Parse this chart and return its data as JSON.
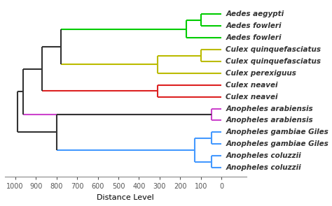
{
  "xlabel": "Distance Level",
  "taxa": [
    "Aedes aegypti",
    "Aedes fowleri",
    "Aedes fowleri",
    "Culex quinquefasciatus",
    "Culex quinquefasciatus",
    "Culex perexiguus",
    "Culex neavei",
    "Culex neavei",
    "Anopheles arabiensis",
    "Anopheles arabiensis",
    "Anopheles gambiae Giles",
    "Anopheles gambiae Giles",
    "Anopheles coluzzii",
    "Anopheles coluzzii"
  ],
  "background_color": "#ffffff",
  "tick_label_fontsize": 7,
  "label_fontsize": 7.5,
  "xlabel_fontsize": 8,
  "green_color": "#00cc00",
  "yellow_color": "#bbbb00",
  "red_color": "#dd2222",
  "magenta_color": "#cc44cc",
  "blue_color": "#4499ff",
  "black_color": "#333333",
  "lw": 1.5,
  "xticks": [
    1000,
    900,
    800,
    700,
    600,
    500,
    400,
    300,
    200,
    100,
    0
  ],
  "xtick_labels": [
    "1000",
    "900",
    "800",
    "700",
    "600",
    "500",
    "400",
    "300",
    "200",
    "100",
    "0"
  ]
}
